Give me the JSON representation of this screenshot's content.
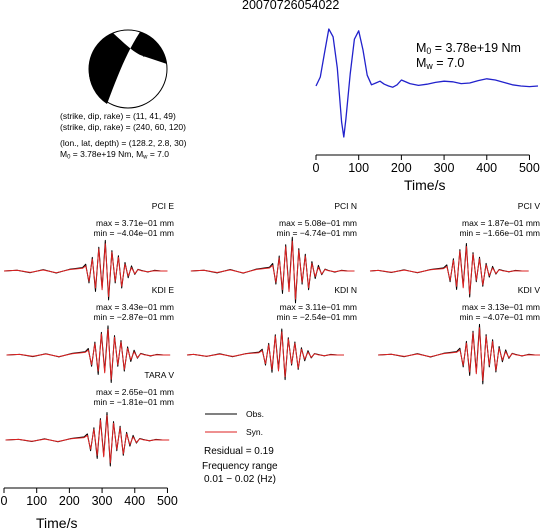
{
  "title": "20070726054022",
  "focal_mechanism": {
    "line1": "(strike, dip, rake) = (11, 41, 49)",
    "line2": "(strike, dip, rake) = (240, 60, 120)",
    "line3": "(lon., lat, depth) = (128.2, 2.8, 30)",
    "line4_pre": "M",
    "line4_sub0": "0",
    "line4_mid": " = 3.78e+19 Nm, M",
    "line4_subw": "w",
    "line4_post": " = 7.0",
    "fill_color": "#000000"
  },
  "stf": {
    "m0_pre": "M",
    "m0_sub": "0",
    "m0_post": " = 3.78e+19 Nm",
    "mw_pre": "M",
    "mw_sub": "w",
    "mw_post": " = 7.0",
    "xlabel": "Time/s",
    "xticks": [
      "0",
      "100",
      "200",
      "300",
      "400",
      "500"
    ],
    "line_color": "#2222cc"
  },
  "traces": [
    {
      "station": "PCI E",
      "max": "max = 3.71e−01 mm",
      "min": "min = −4.04e−01 mm"
    },
    {
      "station": "PCI N",
      "max": "max = 5.08e−01 mm",
      "min": "min = −4.74e−01 mm"
    },
    {
      "station": "PCI V",
      "max": "max = 1.87e−01 mm",
      "min": "min = −1.66e−01 mm"
    },
    {
      "station": "KDI E",
      "max": "max = 3.43e−01 mm",
      "min": "min = −2.87e−01 mm"
    },
    {
      "station": "KDI N",
      "max": "max = 3.11e−01 mm",
      "min": "min = −2.54e−01 mm"
    },
    {
      "station": "KDI V",
      "max": "max = 3.13e−01 mm",
      "min": "min = −4.07e−01 mm"
    },
    {
      "station": "TARA V",
      "max": "max = 2.65e−01 mm",
      "min": "min = −1.81e−01 mm"
    }
  ],
  "legend": {
    "obs": "Obs.",
    "syn": "Syn.",
    "obs_color": "#000000",
    "syn_color": "#dd2222",
    "residual": "Residual = 0.19",
    "freq_label": "Frequency range",
    "freq_value": "0.01 − 0.02 (Hz)"
  },
  "bottom_axis": {
    "xlabel": "Time/s",
    "xticks": [
      "0",
      "100",
      "200",
      "300",
      "400",
      "500"
    ]
  },
  "chart_data": [
    {
      "type": "line",
      "title": "",
      "xlabel": "Time/s",
      "ylabel": "",
      "xlim": [
        0,
        520
      ],
      "series": [
        {
          "x": [
            0,
            10,
            20,
            30,
            40,
            50,
            60,
            65,
            70,
            80,
            90,
            100,
            110,
            120,
            130,
            140,
            150,
            160,
            170,
            180,
            190,
            200,
            220,
            240,
            260,
            280,
            300,
            320,
            340,
            360,
            380,
            400,
            420,
            440,
            460,
            480,
            500,
            520
          ],
          "y": [
            0.0,
            0.15,
            0.55,
            0.95,
            0.82,
            0.3,
            -0.6,
            -0.85,
            -0.55,
            0.2,
            0.78,
            0.92,
            0.6,
            0.18,
            0.02,
            0.05,
            0.08,
            0.03,
            0.0,
            -0.02,
            0.02,
            0.1,
            0.04,
            0.01,
            0.03,
            0.06,
            0.08,
            0.07,
            0.04,
            0.05,
            0.09,
            0.12,
            0.1,
            0.06,
            0.02,
            0.0,
            -0.01,
            0.0
          ]
        }
      ]
    },
    {
      "type": "line",
      "title": "",
      "xlabel": "Time/s",
      "ylabel": "",
      "xlim": [
        0,
        520
      ],
      "series": [
        {
          "name": "Obs.",
          "x": [
            0,
            40,
            80,
            120,
            160,
            200,
            240,
            250,
            260,
            270,
            280,
            290,
            300,
            310,
            320,
            330,
            340,
            350,
            360,
            370,
            380,
            390,
            400,
            410,
            420,
            440,
            460,
            480,
            500
          ],
          "y": [
            0.0,
            0.02,
            -0.05,
            0.04,
            -0.06,
            0.05,
            0.1,
            0.2,
            -0.35,
            0.4,
            -0.6,
            0.7,
            -0.5,
            0.9,
            -0.85,
            0.6,
            -0.35,
            0.45,
            -0.5,
            0.25,
            -0.2,
            0.15,
            -0.1,
            0.05,
            0.02,
            -0.03,
            0.02,
            0.0,
            0.0
          ]
        },
        {
          "name": "Syn.",
          "x": [
            0,
            40,
            80,
            120,
            160,
            200,
            240,
            250,
            260,
            270,
            280,
            290,
            300,
            310,
            320,
            330,
            340,
            350,
            360,
            370,
            380,
            390,
            400,
            410,
            420,
            440,
            460,
            480,
            500
          ],
          "y": [
            0.0,
            0.02,
            -0.04,
            0.03,
            -0.05,
            0.04,
            0.08,
            0.15,
            -0.3,
            0.35,
            -0.5,
            0.65,
            -0.55,
            0.8,
            -0.75,
            0.55,
            -0.3,
            0.4,
            -0.45,
            0.2,
            -0.15,
            0.1,
            -0.08,
            0.04,
            0.01,
            -0.02,
            0.01,
            0.0,
            0.0
          ]
        }
      ]
    }
  ]
}
